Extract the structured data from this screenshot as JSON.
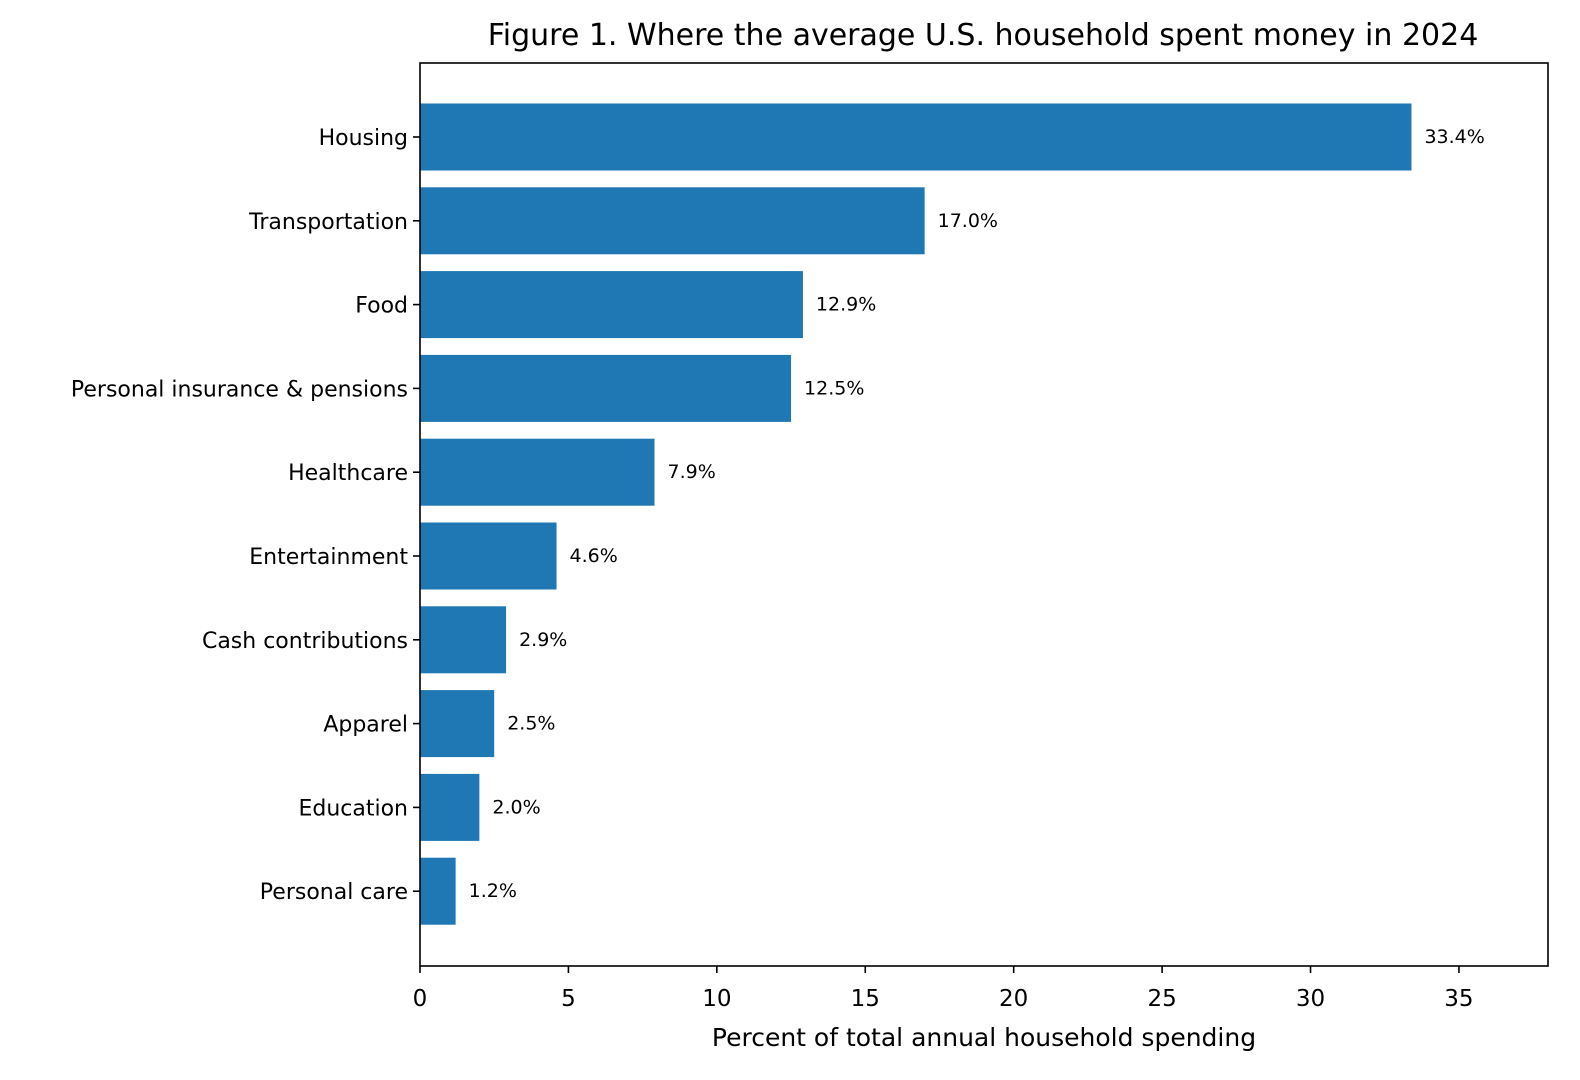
{
  "chart_data": {
    "type": "bar",
    "orientation": "horizontal",
    "title": "Figure 1. Where the average U.S. household spent money in 2024",
    "xlabel": "Percent of total annual household spending",
    "ylabel": "",
    "categories": [
      "Housing",
      "Transportation",
      "Food",
      "Personal insurance & pensions",
      "Healthcare",
      "Entertainment",
      "Cash contributions",
      "Apparel",
      "Education",
      "Personal care"
    ],
    "values": [
      33.4,
      17.0,
      12.9,
      12.5,
      7.9,
      4.6,
      2.9,
      2.5,
      2.0,
      1.2
    ],
    "data_labels": [
      "33.4%",
      "17.0%",
      "12.9%",
      "12.5%",
      "7.9%",
      "4.6%",
      "2.9%",
      "2.5%",
      "2.0%",
      "1.2%"
    ],
    "xlim": [
      0,
      38
    ],
    "xticks": [
      0,
      5,
      10,
      15,
      20,
      25,
      30,
      35
    ],
    "xtick_labels": [
      "0",
      "5",
      "10",
      "15",
      "20",
      "25",
      "30",
      "35"
    ],
    "bar_color": "#1f77b4",
    "grid": false,
    "legend": "none"
  }
}
